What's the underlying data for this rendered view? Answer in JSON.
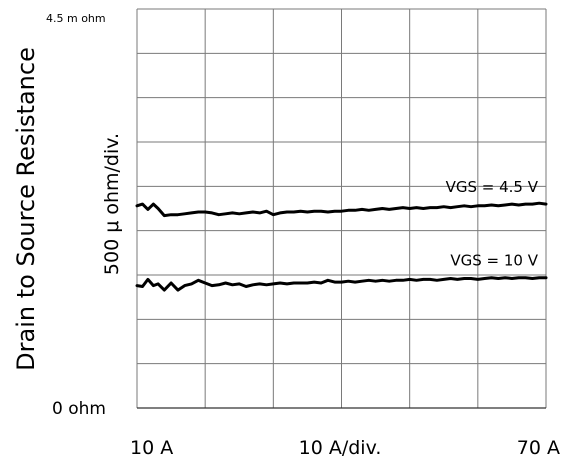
{
  "chart_data": {
    "type": "line",
    "title": "",
    "ylabel_outer": "Drain to Source Resistance",
    "ylabel_inner": "500 μ ohm/div.",
    "y_top_label": "4.5 m ohm",
    "y_bottom_label": "0  ohm",
    "x_left_label": "10  A",
    "x_center_label": "10  A/div.",
    "x_right_label": "70  A",
    "xlim": [
      10,
      70
    ],
    "ylim": [
      0,
      4.5
    ],
    "y_unit": "m ohm",
    "x_unit": "A",
    "grid": true,
    "series": [
      {
        "name": "VGS = 4.5 V",
        "x": [
          10,
          10.8,
          11.6,
          12.4,
          13.1,
          14,
          15,
          16,
          17,
          18,
          19,
          20,
          21,
          22,
          23,
          24,
          25,
          26,
          27,
          28,
          29,
          30,
          31,
          32,
          33,
          34,
          35,
          36,
          37,
          38,
          39,
          40,
          41,
          42,
          43,
          44,
          45,
          46,
          47,
          48,
          49,
          50,
          51,
          52,
          53,
          54,
          55,
          56,
          57,
          58,
          59,
          60,
          61,
          62,
          63,
          64,
          65,
          66,
          67,
          68,
          69,
          70
        ],
        "values": [
          2.28,
          2.3,
          2.24,
          2.3,
          2.25,
          2.17,
          2.18,
          2.18,
          2.19,
          2.2,
          2.21,
          2.21,
          2.2,
          2.18,
          2.19,
          2.2,
          2.19,
          2.2,
          2.21,
          2.2,
          2.22,
          2.18,
          2.2,
          2.21,
          2.21,
          2.22,
          2.21,
          2.22,
          2.22,
          2.21,
          2.22,
          2.22,
          2.23,
          2.23,
          2.24,
          2.23,
          2.24,
          2.25,
          2.24,
          2.25,
          2.26,
          2.25,
          2.26,
          2.25,
          2.26,
          2.26,
          2.27,
          2.26,
          2.27,
          2.28,
          2.27,
          2.28,
          2.28,
          2.29,
          2.28,
          2.29,
          2.3,
          2.29,
          2.3,
          2.3,
          2.31,
          2.3
        ]
      },
      {
        "name": "VGS = 10 V",
        "x": [
          10,
          10.8,
          11.6,
          12.4,
          13.1,
          14,
          15,
          16,
          17,
          18,
          19,
          20,
          21,
          22,
          23,
          24,
          25,
          26,
          27,
          28,
          29,
          30,
          31,
          32,
          33,
          34,
          35,
          36,
          37,
          38,
          39,
          40,
          41,
          42,
          43,
          44,
          45,
          46,
          47,
          48,
          49,
          50,
          51,
          52,
          53,
          54,
          55,
          56,
          57,
          58,
          59,
          60,
          61,
          62,
          63,
          64,
          65,
          66,
          67,
          68,
          69,
          70
        ],
        "values": [
          1.38,
          1.37,
          1.45,
          1.38,
          1.4,
          1.33,
          1.41,
          1.33,
          1.38,
          1.4,
          1.44,
          1.41,
          1.38,
          1.39,
          1.41,
          1.39,
          1.4,
          1.37,
          1.39,
          1.4,
          1.39,
          1.4,
          1.41,
          1.4,
          1.41,
          1.41,
          1.41,
          1.42,
          1.41,
          1.44,
          1.42,
          1.42,
          1.43,
          1.42,
          1.43,
          1.44,
          1.43,
          1.44,
          1.43,
          1.44,
          1.44,
          1.45,
          1.44,
          1.45,
          1.45,
          1.44,
          1.45,
          1.46,
          1.45,
          1.46,
          1.46,
          1.45,
          1.46,
          1.47,
          1.46,
          1.47,
          1.46,
          1.47,
          1.47,
          1.46,
          1.47,
          1.47
        ]
      }
    ]
  }
}
